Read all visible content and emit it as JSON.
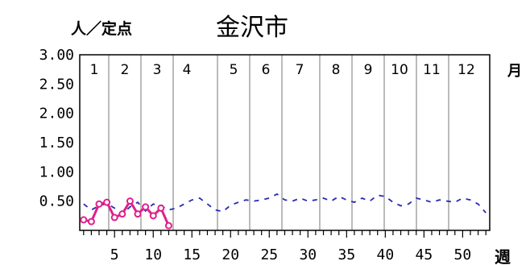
{
  "chart_data": {
    "type": "line",
    "title": "金沢市",
    "ylabel": "人／定点",
    "xlabel": "週",
    "month_unit": "月",
    "ylim": [
      0,
      3.0
    ],
    "xlim": [
      0,
      53
    ],
    "y_ticks": [
      "3.00",
      "2.50",
      "2.00",
      "1.50",
      "1.00",
      "0.50"
    ],
    "x_ticks": [
      "5",
      "10",
      "15",
      "20",
      "25",
      "30",
      "35",
      "40",
      "45",
      "50"
    ],
    "months": [
      "1",
      "2",
      "3",
      "4",
      "5",
      "6",
      "7",
      "8",
      "9",
      "10",
      "11",
      "12"
    ],
    "grid": false,
    "colors": {
      "current": "#e0208a",
      "previous": "#2a2ab4"
    },
    "series": [
      {
        "style": "dashed",
        "x": [
          1,
          2,
          3,
          4,
          5,
          6,
          7,
          8,
          9,
          10,
          11,
          12,
          13,
          14,
          15,
          16,
          17,
          18,
          19,
          20,
          21,
          22,
          23,
          24,
          25,
          26,
          27,
          28,
          29,
          30,
          31,
          32,
          33,
          34,
          35,
          36,
          37,
          38,
          39,
          40,
          41,
          42,
          43,
          44,
          45,
          46,
          47,
          48,
          49,
          50,
          51,
          52,
          53
        ],
        "values": [
          0.45,
          0.35,
          0.42,
          0.46,
          0.38,
          0.28,
          0.4,
          0.48,
          0.33,
          0.45,
          0.42,
          0.35,
          0.38,
          0.45,
          0.52,
          0.55,
          0.45,
          0.35,
          0.32,
          0.43,
          0.48,
          0.52,
          0.5,
          0.52,
          0.55,
          0.62,
          0.52,
          0.5,
          0.55,
          0.5,
          0.52,
          0.55,
          0.5,
          0.58,
          0.52,
          0.48,
          0.55,
          0.5,
          0.6,
          0.58,
          0.48,
          0.42,
          0.45,
          0.55,
          0.52,
          0.48,
          0.52,
          0.5,
          0.48,
          0.55,
          0.52,
          0.45,
          0.3
        ]
      },
      {
        "style": "solid",
        "x": [
          1,
          2,
          3,
          4,
          5,
          6,
          7,
          8,
          9,
          10,
          11,
          12
        ],
        "values": [
          0.18,
          0.15,
          0.45,
          0.48,
          0.22,
          0.28,
          0.5,
          0.28,
          0.4,
          0.25,
          0.38,
          0.08
        ]
      }
    ]
  }
}
